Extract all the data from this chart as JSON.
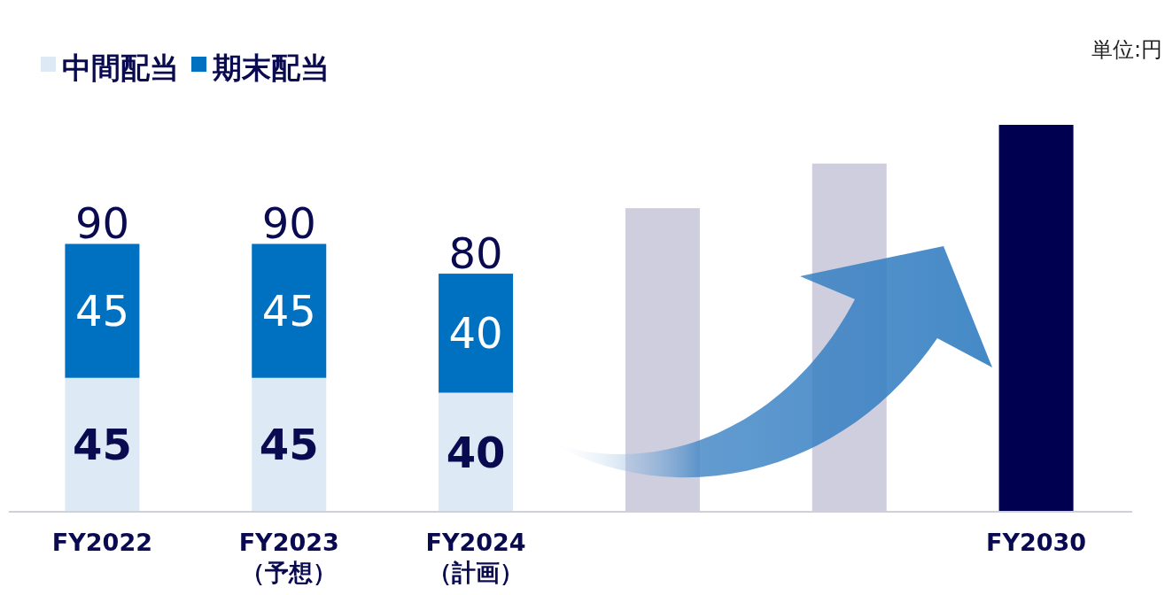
{
  "chart_data": {
    "type": "bar",
    "stacked": true,
    "legend": "top left",
    "categories": [
      "FY2022",
      "FY2023\n（予想）",
      "FY2024\n（計画）",
      null,
      null,
      "FY2030"
    ],
    "series": [
      {
        "name": "中間配当",
        "color": "#dde9f5",
        "values": [
          45,
          45,
          40,
          null,
          null,
          null
        ],
        "value_labels": [
          "45",
          "45",
          "40",
          null,
          null,
          null
        ]
      },
      {
        "name": "期末配当",
        "color": "#0070c0",
        "values": [
          45,
          45,
          40,
          null,
          null,
          null
        ],
        "value_labels": [
          "45",
          "45",
          "40",
          null,
          null,
          null
        ]
      },
      {
        "colors": [
          null,
          null,
          null,
          "#cfcede",
          "#cfcede",
          "#000050"
        ],
        "values": [
          null,
          null,
          null,
          102,
          117,
          130
        ]
      }
    ],
    "totals": [
      "90",
      "90",
      "80",
      null,
      null,
      null
    ],
    "annotations": [
      "単位:円"
    ]
  }
}
